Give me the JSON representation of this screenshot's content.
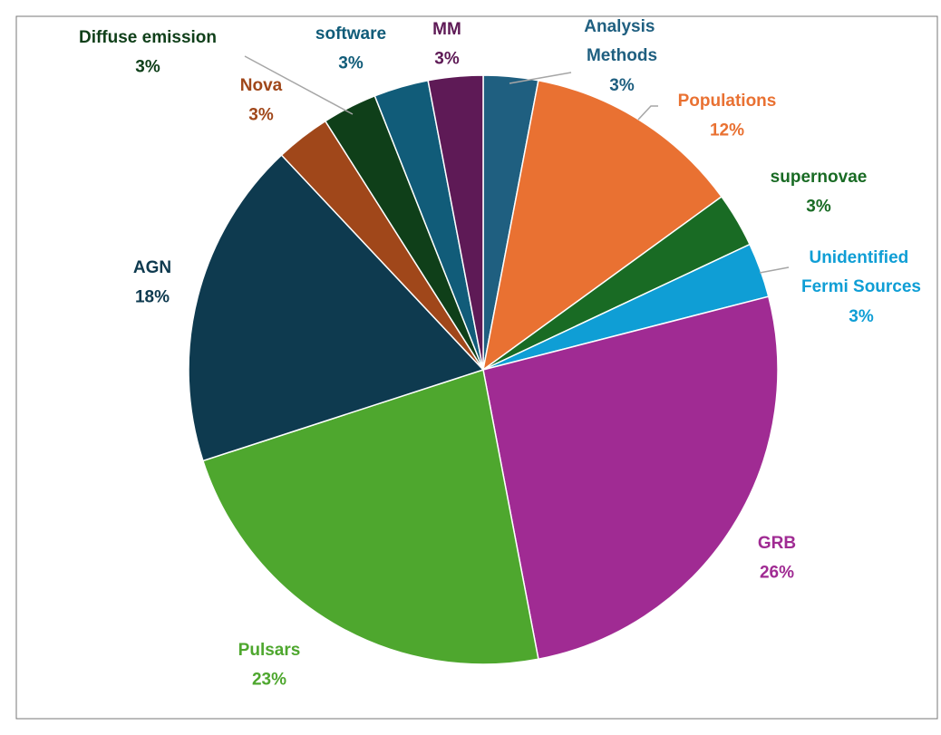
{
  "chart_data": {
    "type": "pie",
    "categories": [
      "Analysis Methods",
      "Populations",
      "supernovae",
      "Unidentified Fermi Sources",
      "GRB",
      "Pulsars",
      "AGN",
      "Nova",
      "Diffuse emission",
      "software",
      "MM"
    ],
    "values": [
      3,
      12,
      3,
      3,
      26,
      23,
      18,
      3,
      3,
      3,
      3
    ],
    "value_labels": [
      "3%",
      "12%",
      "3%",
      "3%",
      "26%",
      "23%",
      "18%",
      "3%",
      "3%",
      "3%",
      "3%"
    ],
    "colors": [
      "#1f5f80",
      "#e97132",
      "#196b24",
      "#0f9ed5",
      "#a02b93",
      "#4ea72e",
      "#0e3a4f",
      "#a0471a",
      "#0f3f19",
      "#115c79",
      "#5e1a56"
    ]
  }
}
